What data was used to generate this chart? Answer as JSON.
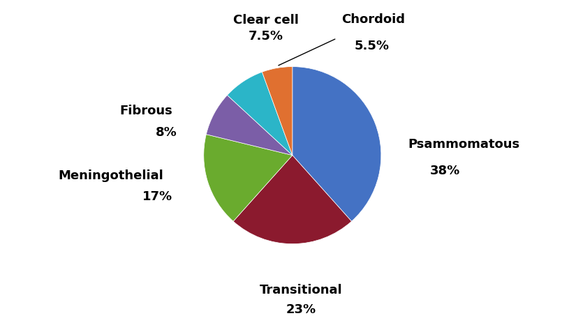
{
  "labels": [
    "Psammomatous",
    "Transitional",
    "Meningothelial",
    "Fibrous",
    "Clear cell",
    "Chordoid"
  ],
  "values": [
    38,
    23,
    17,
    8,
    7.5,
    5.5
  ],
  "colors": [
    "#4472C4",
    "#8B1A2E",
    "#6AAB2E",
    "#7B5EA7",
    "#2BB5C8",
    "#E07030"
  ],
  "label_texts": [
    "Psammomatous\n38%",
    "Transitional\n23%",
    "Meningothelial\n17%",
    "Fibrous\n8%",
    "Clear cell\n7.5%",
    "Chordoid\n5.5%"
  ],
  "startangle": 90,
  "figsize": [
    8.25,
    4.76
  ],
  "dpi": 100,
  "label_fontsize": 13,
  "pct_fontsize": 13,
  "annotation_line_color": "#000000"
}
